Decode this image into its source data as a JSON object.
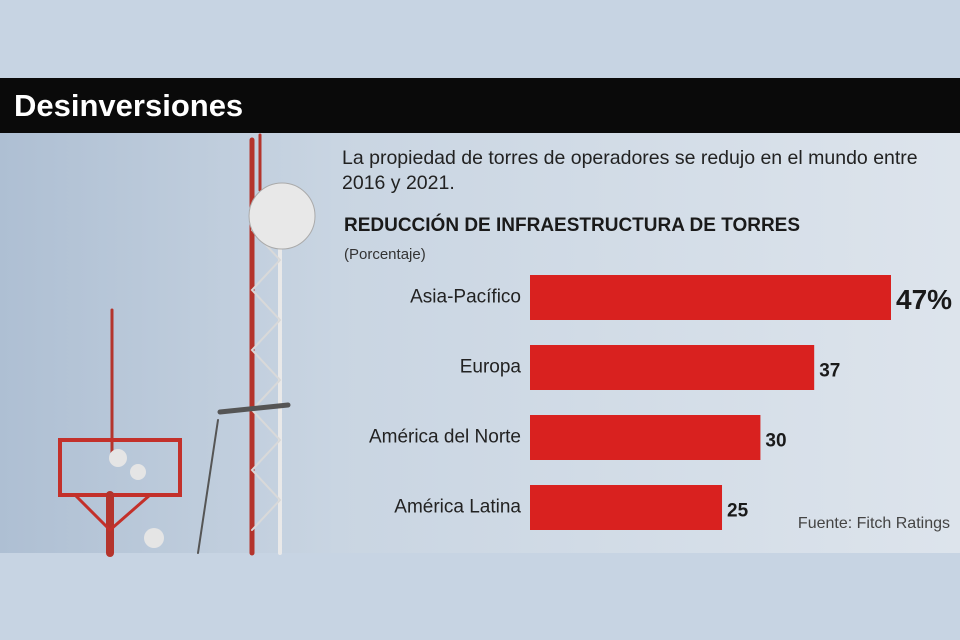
{
  "chart_data": {
    "type": "bar",
    "orientation": "horizontal",
    "header": "Desinversiones",
    "subtitle": "La propiedad de torres de operadores se redujo en el mundo entre 2016 y 2021.",
    "title": "REDUCCIÓN DE INFRAESTRUCTURA DE TORRES",
    "unit_note": "(Porcentaje)",
    "categories": [
      "Asia-Pacífico",
      "Europa",
      "América del Norte",
      "América Latina"
    ],
    "values": [
      47,
      37,
      30,
      25
    ],
    "value_labels": [
      "47%",
      "37",
      "30",
      "25"
    ],
    "color": "#d9211f",
    "source": "Fuente: Fitch Ratings"
  }
}
